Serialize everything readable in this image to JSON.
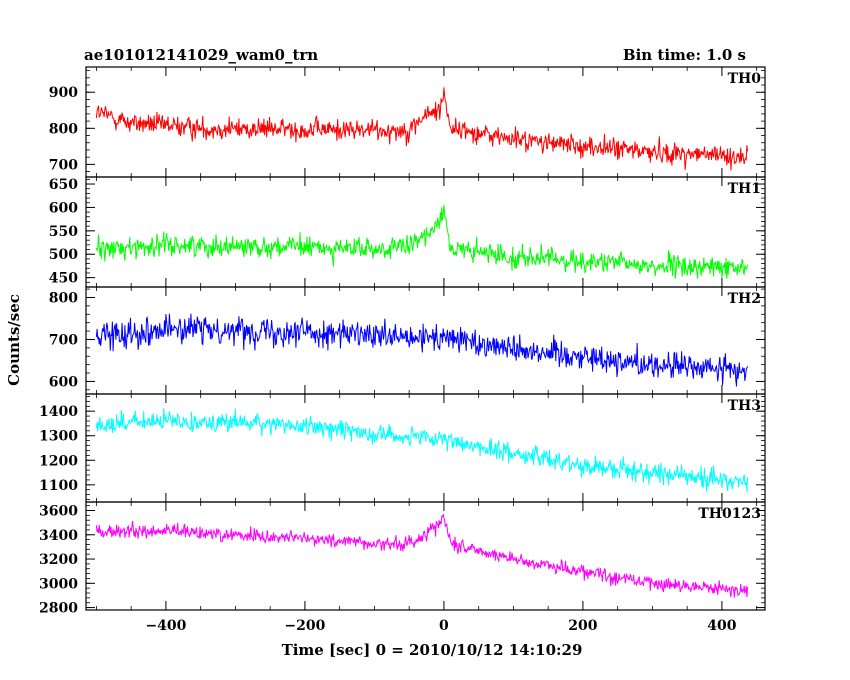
{
  "header": {
    "source_name": "ae101012141029_wam0_trn",
    "bin_time": "Bin time: 1.0 s"
  },
  "chart_data": {
    "type": "line",
    "xlabel": "Time [sec] 0 = 2010/10/12 14:10:29",
    "ylabel": "Counts/sec",
    "xlim": [
      -515,
      462
    ],
    "x_ticks": [
      -400,
      -200,
      0,
      200,
      400
    ],
    "x_start": -500,
    "x_end": 437,
    "bin_time_s": 1.0,
    "grid": false,
    "legend": "none",
    "panels": [
      {
        "name": "TH0",
        "color": "#ff0000",
        "ylim": [
          665,
          970
        ],
        "y_ticks": [
          700,
          800,
          900
        ],
        "trend": [
          [
            -500,
            845
          ],
          [
            -450,
            815
          ],
          [
            -350,
            800
          ],
          [
            -100,
            795
          ],
          [
            -50,
            795
          ],
          [
            -30,
            830
          ],
          [
            -5,
            855
          ],
          [
            0,
            900
          ],
          [
            10,
            800
          ],
          [
            100,
            770
          ],
          [
            200,
            750
          ],
          [
            300,
            735
          ],
          [
            437,
            720
          ]
        ],
        "noise": 45
      },
      {
        "name": "TH1",
        "color": "#00ff00",
        "ylim": [
          430,
          665
        ],
        "y_ticks": [
          450,
          500,
          550,
          600,
          650
        ],
        "trend": [
          [
            -500,
            510
          ],
          [
            -400,
            520
          ],
          [
            -200,
            515
          ],
          [
            -100,
            510
          ],
          [
            -50,
            515
          ],
          [
            -25,
            540
          ],
          [
            -5,
            580
          ],
          [
            0,
            600
          ],
          [
            10,
            510
          ],
          [
            100,
            495
          ],
          [
            200,
            485
          ],
          [
            300,
            475
          ],
          [
            437,
            470
          ]
        ],
        "noise": 35
      },
      {
        "name": "TH2",
        "color": "#0000ff",
        "ylim": [
          570,
          825
        ],
        "y_ticks": [
          600,
          700,
          800
        ],
        "trend": [
          [
            -500,
            710
          ],
          [
            -400,
            725
          ],
          [
            -200,
            720
          ],
          [
            -50,
            700
          ],
          [
            0,
            705
          ],
          [
            100,
            680
          ],
          [
            200,
            660
          ],
          [
            300,
            640
          ],
          [
            437,
            625
          ]
        ],
        "noise": 50
      },
      {
        "name": "TH3",
        "color": "#00ffff",
        "ylim": [
          1030,
          1470
        ],
        "y_ticks": [
          1100,
          1200,
          1300,
          1400
        ],
        "trend": [
          [
            -500,
            1345
          ],
          [
            -400,
            1360
          ],
          [
            -300,
            1355
          ],
          [
            -200,
            1340
          ],
          [
            -100,
            1310
          ],
          [
            0,
            1280
          ],
          [
            100,
            1230
          ],
          [
            200,
            1180
          ],
          [
            300,
            1150
          ],
          [
            437,
            1110
          ]
        ],
        "noise": 60
      },
      {
        "name": "TH0123",
        "color": "#ff00ff",
        "ylim": [
          2780,
          3670
        ],
        "y_ticks": [
          2800,
          3000,
          3200,
          3400,
          3600
        ],
        "trend": [
          [
            -500,
            3420
          ],
          [
            -400,
            3430
          ],
          [
            -200,
            3370
          ],
          [
            -100,
            3330
          ],
          [
            -50,
            3320
          ],
          [
            -25,
            3420
          ],
          [
            -5,
            3500
          ],
          [
            0,
            3560
          ],
          [
            10,
            3330
          ],
          [
            100,
            3200
          ],
          [
            200,
            3100
          ],
          [
            300,
            3000
          ],
          [
            437,
            2940
          ]
        ],
        "noise": 90
      }
    ]
  }
}
